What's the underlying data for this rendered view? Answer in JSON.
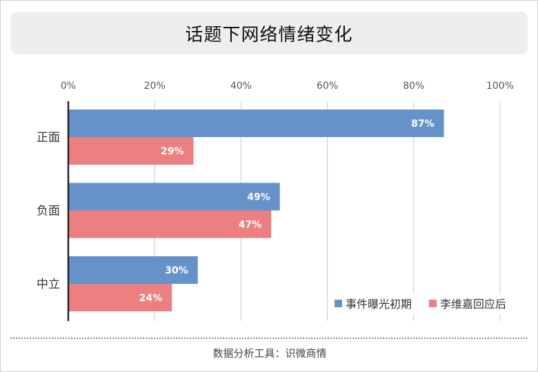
{
  "title": "话题下网络情绪变化",
  "footer": "数据分析工具：识微商情",
  "colors": {
    "series1": "#6592c8",
    "series2": "#ec7f80",
    "grid": "#c8c8c8",
    "axis": "#222222",
    "title_bg": "#eeeeee"
  },
  "chart_data": {
    "type": "bar",
    "orientation": "horizontal",
    "title": "话题下网络情绪变化",
    "categories": [
      "正面",
      "负面",
      "中立"
    ],
    "series": [
      {
        "name": "事件曝光初期",
        "values": [
          87,
          49,
          30
        ],
        "labels": [
          "87%",
          "49%",
          "30%"
        ]
      },
      {
        "name": "李维嘉回应后",
        "values": [
          29,
          47,
          24
        ],
        "labels": [
          "29%",
          "47%",
          "24%"
        ]
      }
    ],
    "xlim": [
      0,
      100
    ],
    "xticks": [
      "0%",
      "20%",
      "40%",
      "60%",
      "80%",
      "100%"
    ],
    "x_axis_position": "top",
    "grid": true,
    "legend_position": "bottom-right",
    "xlabel": "",
    "ylabel": ""
  }
}
